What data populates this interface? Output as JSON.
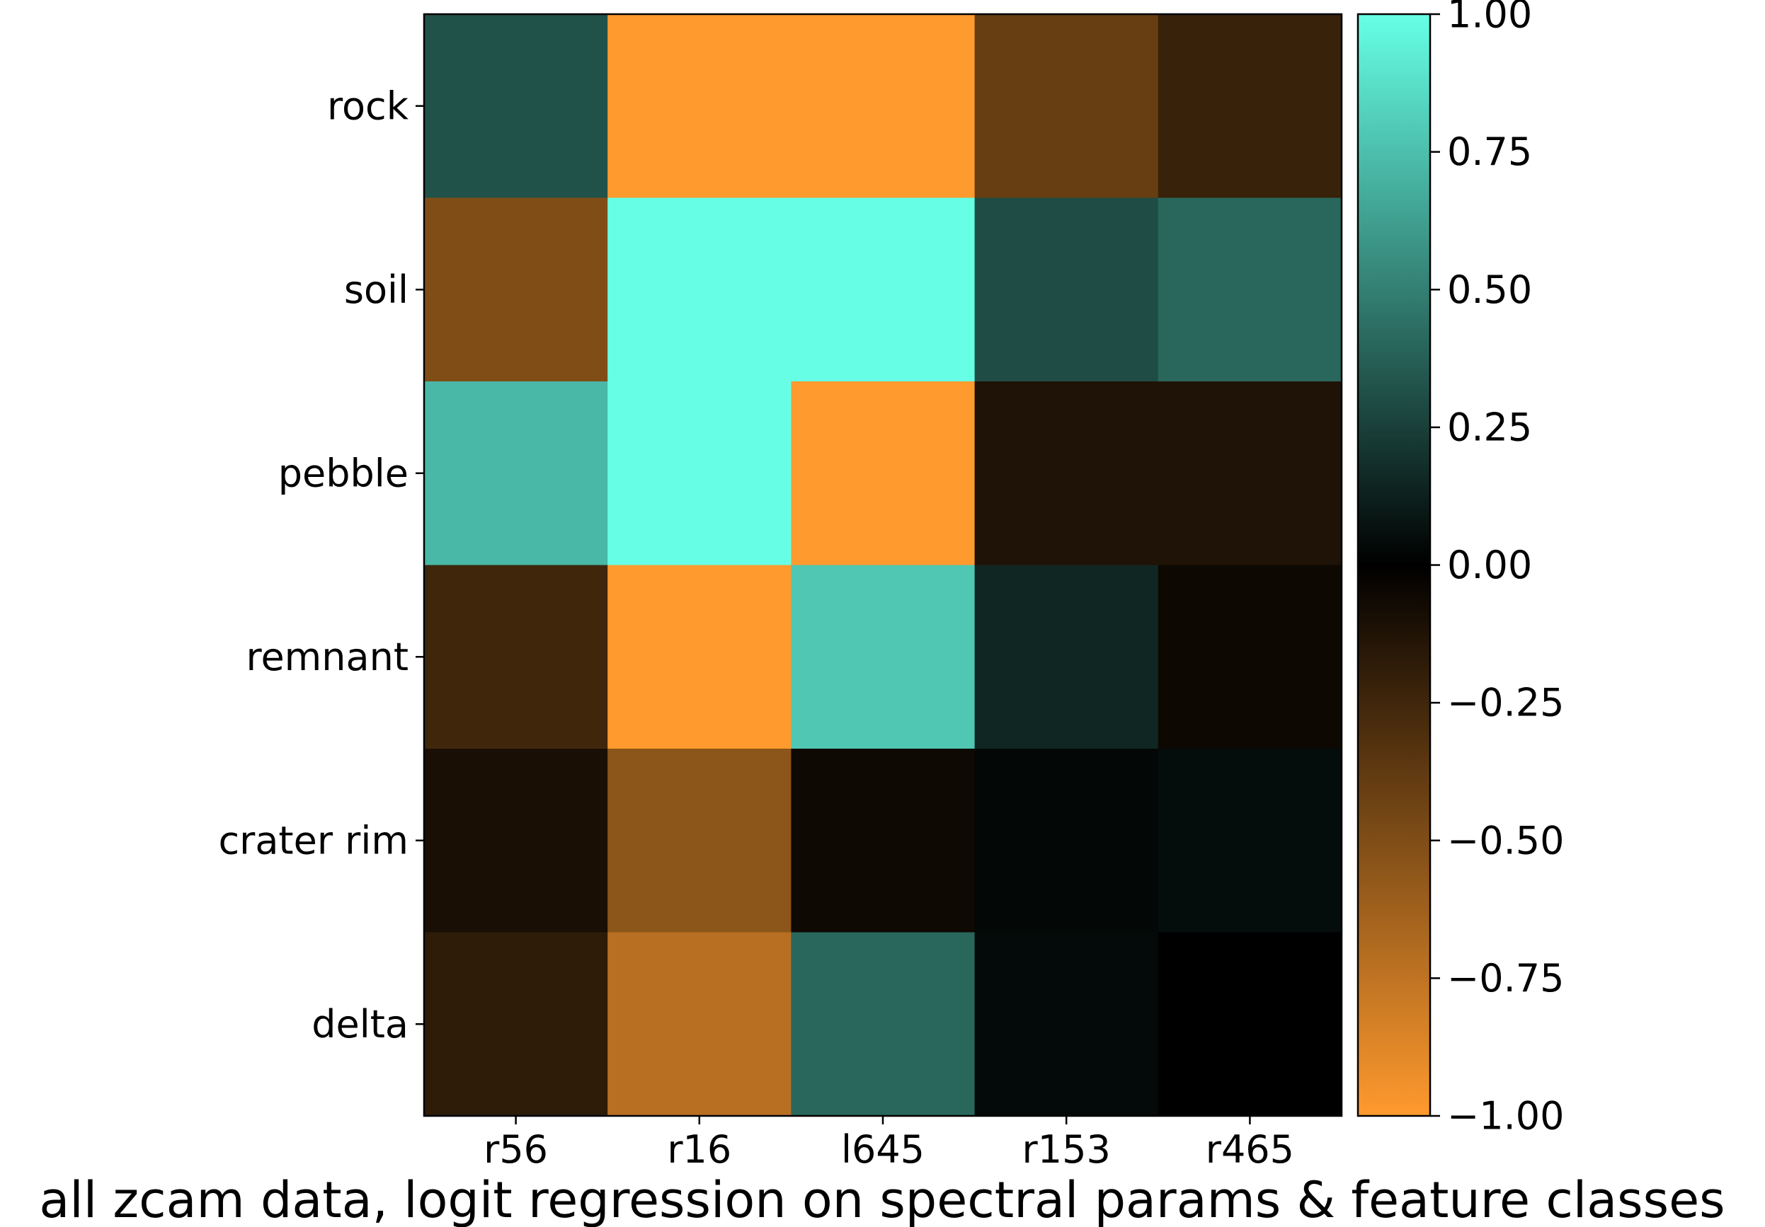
{
  "chart_data": {
    "type": "heatmap",
    "title": "all zcam data, logit regression on spectral params & feature classes",
    "x_categories": [
      "r56",
      "r16",
      "l645",
      "r153",
      "r465"
    ],
    "y_categories": [
      "rock",
      "soil",
      "pebble",
      "remnant",
      "crater rim",
      "delta"
    ],
    "values": [
      [
        0.32,
        -1.0,
        -1.0,
        -0.4,
        -0.22
      ],
      [
        -0.5,
        1.0,
        1.0,
        0.3,
        0.4
      ],
      [
        0.72,
        1.0,
        -1.0,
        -0.12,
        -0.12
      ],
      [
        -0.25,
        -1.0,
        0.78,
        0.15,
        -0.05
      ],
      [
        -0.1,
        -0.55,
        -0.06,
        0.03,
        0.05
      ],
      [
        -0.18,
        -0.72,
        0.4,
        0.04,
        0.0
      ]
    ],
    "colorbar": {
      "vmin": -1.0,
      "vmax": 1.0,
      "ticks": [
        1.0,
        0.75,
        0.5,
        0.25,
        0.0,
        -0.25,
        -0.5,
        -0.75,
        -1.0
      ],
      "tick_labels": [
        "1.00",
        "0.75",
        "0.50",
        "0.25",
        "0.00",
        "−0.25",
        "−0.50",
        "−0.75",
        "−1.00"
      ],
      "colors": {
        "negative": "#ff9a2e",
        "zero": "#000000",
        "positive": "#66ffe6"
      }
    }
  }
}
